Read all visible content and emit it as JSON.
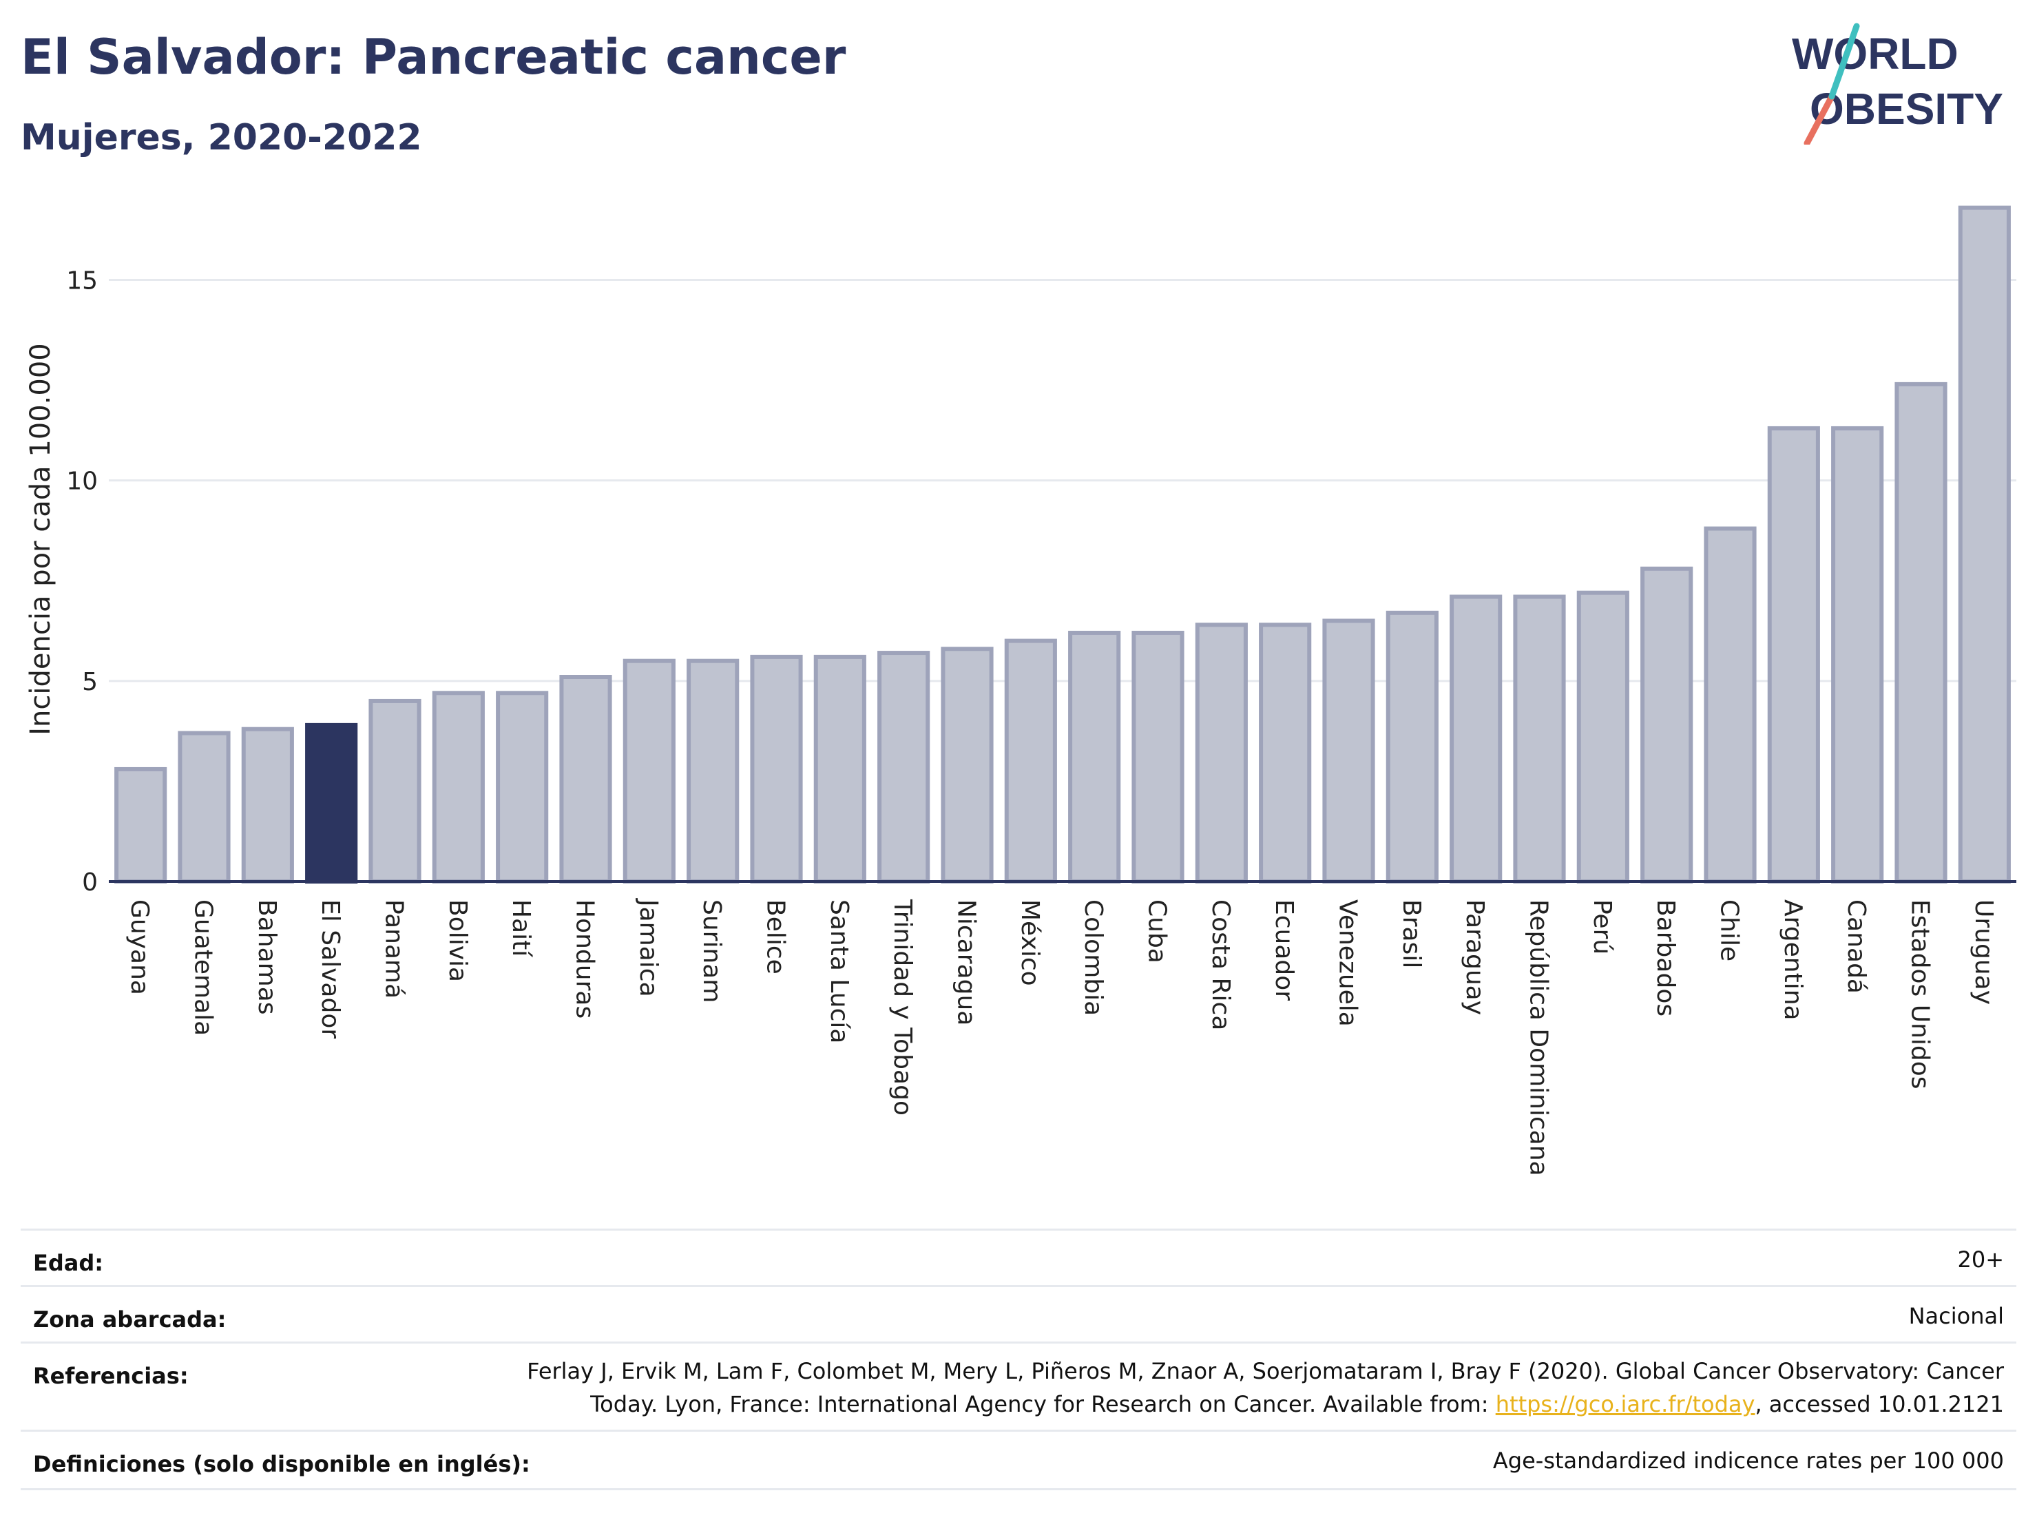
{
  "header": {
    "title": "El Salvador: Pancreatic cancer",
    "subtitle": "Mujeres, 2020-2022"
  },
  "logo": {
    "line1": "WORLD",
    "line2": "OBESITY"
  },
  "colors": {
    "highlight": "#2c3560",
    "bar": "#bfc3d0",
    "bar_stroke": "#9ea3ba",
    "grid": "#e6e9ee",
    "text": "#2c3560",
    "logo_teal": "#3fbfbf",
    "logo_red": "#e8705f",
    "link": "#e8b21c"
  },
  "chart_data": {
    "type": "bar",
    "ylabel": "Incidencia por cada 100.000",
    "ylim": [
      0,
      17
    ],
    "yticks": [
      0,
      5,
      10,
      15
    ],
    "highlight": "El Salvador",
    "grid": true,
    "categories": [
      "Guyana",
      "Guatemala",
      "Bahamas",
      "El Salvador",
      "Panamá",
      "Bolivia",
      "Haití",
      "Honduras",
      "Jamaica",
      "Surinam",
      "Belice",
      "Santa Lucía",
      "Trinidad y Tobago",
      "Nicaragua",
      "México",
      "Colombia",
      "Cuba",
      "Costa Rica",
      "Ecuador",
      "Venezuela",
      "Brasil",
      "Paraguay",
      "República Dominicana",
      "Perú",
      "Barbados",
      "Chile",
      "Argentina",
      "Canadá",
      "Estados Unidos",
      "Uruguay"
    ],
    "values": [
      2.8,
      3.7,
      3.8,
      3.9,
      4.5,
      4.7,
      4.7,
      5.1,
      5.5,
      5.5,
      5.6,
      5.6,
      5.7,
      5.8,
      6.0,
      6.2,
      6.2,
      6.4,
      6.4,
      6.5,
      6.7,
      7.1,
      7.1,
      7.2,
      7.8,
      8.8,
      11.3,
      11.3,
      12.4,
      16.8
    ]
  },
  "meta": {
    "age_label": "Edad:",
    "age_value": "20+",
    "area_label": "Zona abarcada:",
    "area_value": "Nacional",
    "ref_label": "Referencias:",
    "ref_line1": "Ferlay J, Ervik M, Lam F, Colombet M, Mery L, Piñeros M, Znaor A, Soerjomataram I, Bray F (2020). Global Cancer Observatory: Cancer",
    "ref_line2_pre": "Today. Lyon, France: International Agency for Research on Cancer. Available from: ",
    "ref_link": "https://gco.iarc.fr/today",
    "ref_line2_post": ", accessed 10.01.2121",
    "def_label": "Definiciones (solo disponible en inglés):",
    "def_value": "Age-standardized indicence rates per 100 000"
  }
}
